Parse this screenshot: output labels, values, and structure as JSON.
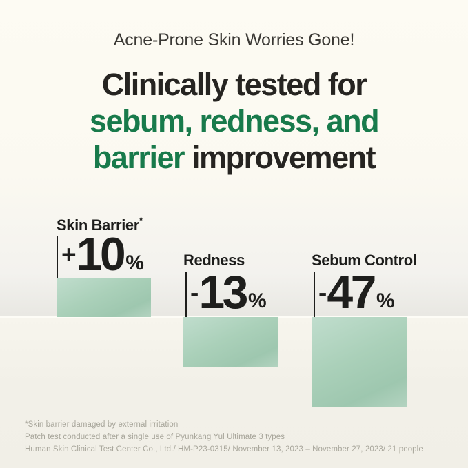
{
  "page": {
    "tagline": "Acne-Prone Skin Worries Gone!",
    "heading": {
      "line1": "Clinically tested for",
      "line2": "sebum, redness, and",
      "line3_highlight": "barrier",
      "line3_rest": " improvement"
    },
    "stats": [
      {
        "label": "Skin Barrier",
        "note": "*",
        "sign": "+",
        "value": "10",
        "unit": "%"
      },
      {
        "label": "Redness",
        "note": "",
        "sign": "-",
        "value": "13",
        "unit": "%"
      },
      {
        "label": "Sebum Control",
        "note": "",
        "sign": "-",
        "value": "47",
        "unit": "%"
      }
    ],
    "footnotes": [
      "*Skin barrier damaged by external irritation",
      "Patch test conducted after a single use of Pyunkang Yul Ultimate 3 types",
      "Human Skin Clinical Test Center Co., Ltd./ HM-P23-0315/ November 13, 2023 – November 27, 2023/ 21 people"
    ],
    "colors": {
      "accent_green": "#187a4b",
      "text_dark": "#262421",
      "bar_mint_light": "#c0ddcd",
      "bar_mint_dark": "#9ec7af",
      "background_cream": "#fdfbf3",
      "footnote_gray": "#a8a69b"
    }
  },
  "chart_data": {
    "type": "bar",
    "title": "Clinically tested for sebum, redness, and barrier improvement",
    "subtitle": "Acne-Prone Skin Worries Gone!",
    "categories": [
      "Skin Barrier*",
      "Redness",
      "Sebum Control"
    ],
    "values": [
      10,
      -13,
      -47
    ],
    "value_labels": [
      "+10%",
      "-13%",
      "-47%"
    ],
    "unit": "%",
    "legend": "none",
    "grid": false,
    "notes": "Decorative mint-green bars; bar lengths are illustrative (57px, 73px, 130px), values shown as large numerals beside each bar"
  }
}
